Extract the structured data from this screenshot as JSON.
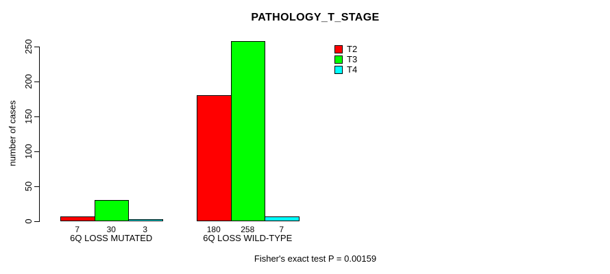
{
  "chart_data": {
    "type": "bar",
    "title": "PATHOLOGY_T_STAGE",
    "ylabel": "number of cases",
    "xlabel": "",
    "categories": [
      "6Q LOSS MUTATED",
      "6Q LOSS WILD-TYPE"
    ],
    "series": [
      {
        "name": "T2",
        "color": "#ff0000",
        "values": [
          7,
          180
        ]
      },
      {
        "name": "T3",
        "color": "#00ff00",
        "values": [
          30,
          258
        ]
      },
      {
        "name": "T4",
        "color": "#00ffff",
        "values": [
          3,
          7
        ]
      }
    ],
    "yticks": [
      0,
      50,
      100,
      150,
      200,
      250
    ],
    "ylim": [
      0,
      250
    ],
    "grid": false,
    "legend_position": "top-right",
    "bar_border_color": "#000000",
    "annotation": "Fisher's exact test P = 0.00159"
  }
}
